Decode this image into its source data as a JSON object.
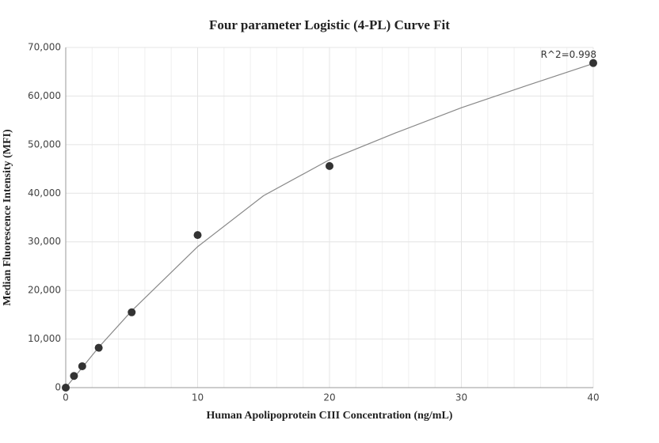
{
  "chart_data": {
    "type": "scatter",
    "title": "Four parameter Logistic (4-PL) Curve Fit",
    "x_label": "Human Apolipoprotein CIII Concentration (ng/mL)",
    "y_label": "Median Fluorescence Intensity (MFI)",
    "annotation": "R^2=0.998",
    "points": {
      "color": "#333333",
      "x": [
        0,
        0.625,
        1.25,
        2.5,
        5,
        10,
        20,
        40
      ],
      "y": [
        0,
        2400,
        4400,
        8200,
        15500,
        31400,
        45600,
        66800
      ]
    },
    "fit_curve": {
      "color": "#888888",
      "x": [
        0,
        1,
        2.5,
        5,
        10,
        15,
        20,
        25,
        30,
        35,
        40
      ],
      "y": [
        0,
        3300,
        8300,
        15800,
        29000,
        39500,
        46900,
        52400,
        57600,
        62200,
        66700
      ]
    },
    "xlim": [
      0,
      40
    ],
    "ylim": [
      0,
      70000
    ],
    "xticks": [
      0,
      10,
      20,
      30,
      40
    ],
    "x_minor_grid": [
      2,
      4,
      6,
      8,
      12,
      14,
      16,
      18,
      22,
      24,
      26,
      28,
      32,
      34,
      36,
      38
    ],
    "yticks": [
      0,
      {
        "value": 10000,
        "label": "10,000"
      },
      {
        "value": 20000,
        "label": "20,000"
      },
      {
        "value": 30000,
        "label": "30,000"
      },
      {
        "value": 40000,
        "label": "40,000"
      },
      {
        "value": 50000,
        "label": "50,000"
      },
      {
        "value": 60000,
        "label": "60,000"
      },
      {
        "value": 70000,
        "label": "70,000"
      }
    ],
    "grid": true
  }
}
